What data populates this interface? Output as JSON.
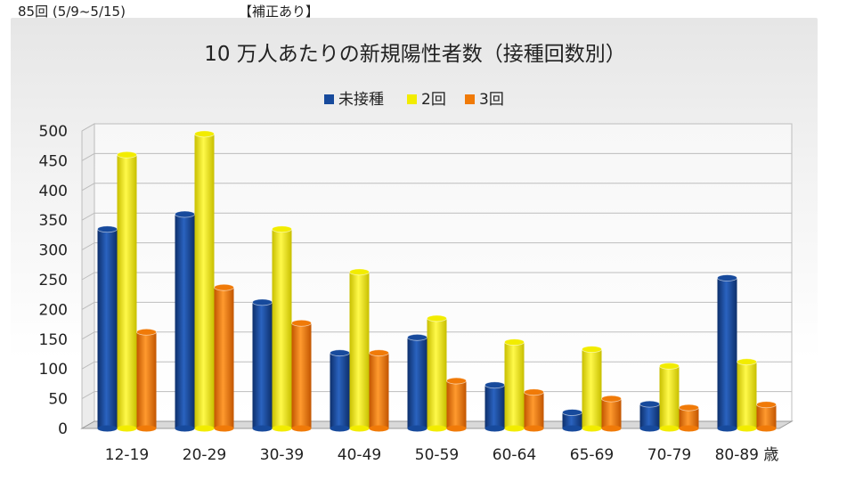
{
  "header": {
    "left": "85回 (5/9~5/15)",
    "mid": "【補正あり】"
  },
  "chart_data": {
    "type": "bar",
    "title": "10 万人あたりの新規陽性者数（接種回数別）",
    "categories": [
      "12-19",
      "20-29",
      "30-39",
      "40-49",
      "50-59",
      "60-64",
      "65-69",
      "70-79",
      "80-89 歳"
    ],
    "series": [
      {
        "name": "未接種",
        "color": "#174a9c",
        "values": [
          335,
          360,
          212,
          127,
          153,
          73,
          27,
          41,
          253
        ]
      },
      {
        "name": "2回",
        "color": "#f2ec00",
        "values": [
          460,
          495,
          335,
          263,
          185,
          145,
          133,
          105,
          112
        ]
      },
      {
        "name": "3回",
        "color": "#f07a08",
        "values": [
          162,
          237,
          177,
          127,
          80,
          61,
          50,
          35,
          40
        ]
      }
    ],
    "yticks": [
      "0",
      "50",
      "100",
      "150",
      "200",
      "250",
      "300",
      "350",
      "400",
      "450",
      "500"
    ],
    "ylim": [
      0,
      500
    ],
    "grid": true,
    "legend_position": "top"
  }
}
